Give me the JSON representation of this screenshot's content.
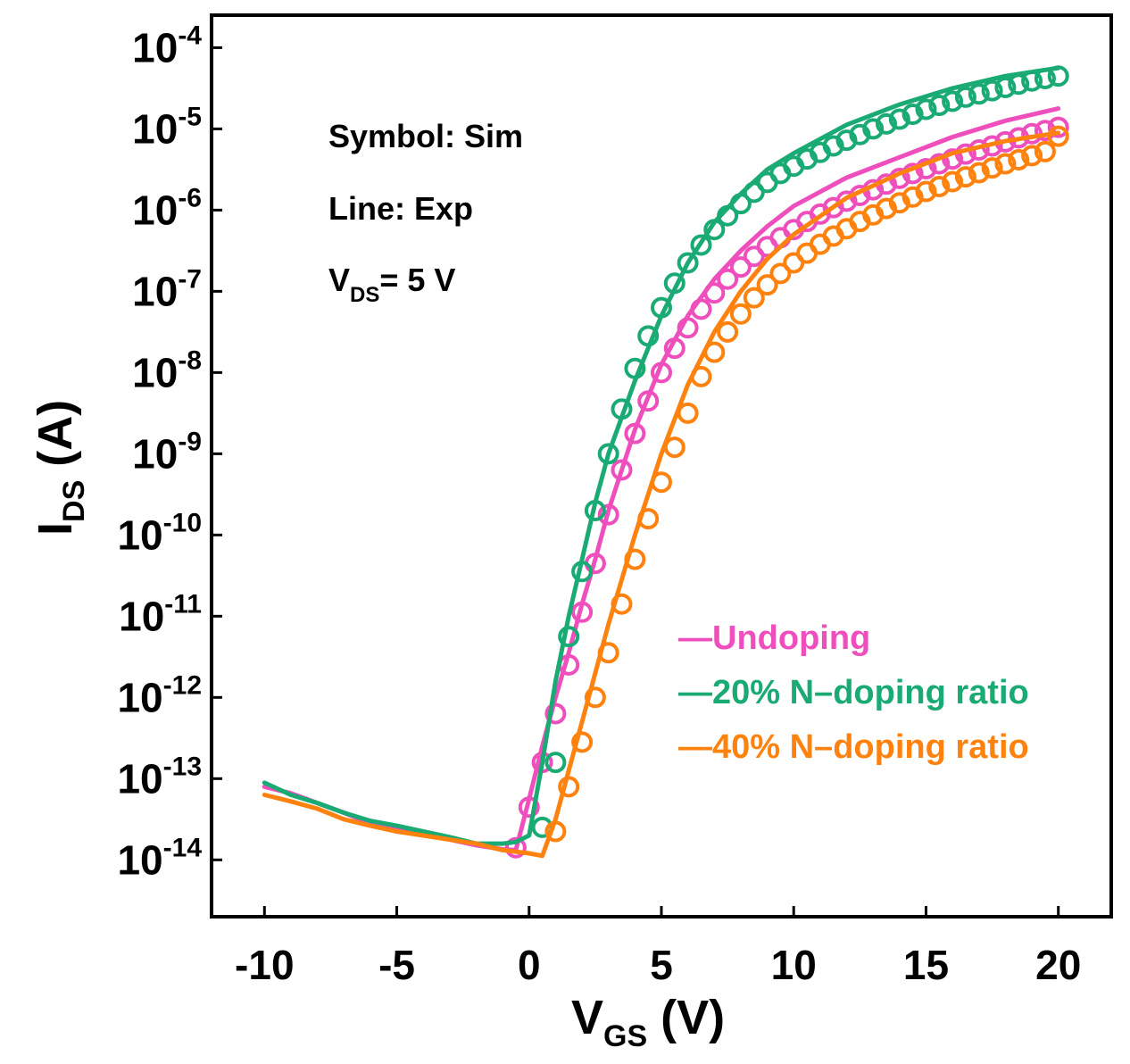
{
  "chart_data": {
    "type": "line",
    "title": "",
    "xlabel": {
      "main": "V",
      "sub": "GS",
      "unit": " (V)"
    },
    "ylabel": {
      "main": "I",
      "sub": "DS",
      "unit": " (A)"
    },
    "xlim": [
      -12,
      22
    ],
    "ylim_log10": [
      -14.7,
      -3.6
    ],
    "yscale": "log",
    "x_ticks": [
      {
        "value": -10,
        "label": "-10"
      },
      {
        "value": -5,
        "label": "-5"
      },
      {
        "value": 0,
        "label": "0"
      },
      {
        "value": 5,
        "label": "5"
      },
      {
        "value": 10,
        "label": "10"
      },
      {
        "value": 15,
        "label": "15"
      },
      {
        "value": 20,
        "label": "20"
      }
    ],
    "y_ticks": [
      {
        "exp": -4,
        "base": "10",
        "sup": "-4"
      },
      {
        "exp": -5,
        "base": "10",
        "sup": "-5"
      },
      {
        "exp": -6,
        "base": "10",
        "sup": "-6"
      },
      {
        "exp": -7,
        "base": "10",
        "sup": "-7"
      },
      {
        "exp": -8,
        "base": "10",
        "sup": "-8"
      },
      {
        "exp": -9,
        "base": "10",
        "sup": "-9"
      },
      {
        "exp": -10,
        "base": "10",
        "sup": "-10"
      },
      {
        "exp": -11,
        "base": "10",
        "sup": "-11"
      },
      {
        "exp": -12,
        "base": "10",
        "sup": "-12"
      },
      {
        "exp": -13,
        "base": "10",
        "sup": "-13"
      },
      {
        "exp": -14,
        "base": "10",
        "sup": "-14"
      }
    ],
    "annotations": [
      {
        "text": "Symbol: Sim"
      },
      {
        "text": "Line: Exp"
      },
      {
        "main": "V",
        "sub": "DS",
        "rest": "= 5 V"
      }
    ],
    "legend_position": "bottom-right",
    "series": [
      {
        "name": "Undoping",
        "legend_label": "—Undoping",
        "color": "#ee4fbd",
        "exp_x": [
          -10,
          -9,
          -8,
          -7,
          -6,
          -5,
          -4,
          -3,
          -2,
          -1,
          -0.5,
          0,
          0.5,
          1,
          1.5,
          2,
          2.5,
          3,
          4,
          5,
          6,
          7,
          8,
          9,
          10,
          12,
          14,
          16,
          18,
          20
        ],
        "exp_log10": [
          -13.1,
          -13.18,
          -13.3,
          -13.42,
          -13.55,
          -13.6,
          -13.68,
          -13.75,
          -13.82,
          -13.87,
          -13.88,
          -13.25,
          -12.6,
          -12.0,
          -11.45,
          -10.85,
          -10.3,
          -9.7,
          -8.7,
          -7.9,
          -7.3,
          -6.85,
          -6.5,
          -6.2,
          -5.95,
          -5.6,
          -5.35,
          -5.1,
          -4.9,
          -4.75
        ],
        "sim_x": [
          -0.5,
          0,
          0.5,
          1,
          1.5,
          2,
          2.5,
          3,
          3.5,
          4,
          4.5,
          5,
          5.5,
          6,
          6.5,
          7,
          7.5,
          8,
          8.5,
          9,
          9.5,
          10,
          10.5,
          11,
          11.5,
          12,
          12.5,
          13,
          13.5,
          14,
          14.5,
          15,
          15.5,
          16,
          16.5,
          17,
          17.5,
          18,
          18.5,
          19,
          19.5,
          20
        ],
        "sim_log10": [
          -13.85,
          -13.35,
          -12.8,
          -12.2,
          -11.6,
          -10.95,
          -10.35,
          -9.75,
          -9.2,
          -8.75,
          -8.35,
          -8.0,
          -7.7,
          -7.45,
          -7.22,
          -7.02,
          -6.85,
          -6.7,
          -6.57,
          -6.45,
          -6.34,
          -6.24,
          -6.14,
          -6.05,
          -5.97,
          -5.89,
          -5.82,
          -5.75,
          -5.68,
          -5.61,
          -5.55,
          -5.49,
          -5.43,
          -5.37,
          -5.31,
          -5.26,
          -5.21,
          -5.16,
          -5.11,
          -5.06,
          -5.02,
          -4.98
        ]
      },
      {
        "name": "20% N-doping ratio",
        "legend_label": "—20% N–doping ratio",
        "color": "#1aaa73",
        "exp_x": [
          -10,
          -9,
          -8,
          -7,
          -6,
          -5,
          -4,
          -3,
          -2,
          -1,
          -0.5,
          0,
          0.5,
          1,
          1.5,
          2,
          2.5,
          3,
          4,
          5,
          6,
          7,
          8,
          9,
          10,
          12,
          14,
          16,
          18,
          20
        ],
        "exp_log10": [
          -13.05,
          -13.2,
          -13.3,
          -13.42,
          -13.52,
          -13.58,
          -13.65,
          -13.72,
          -13.8,
          -13.8,
          -13.78,
          -13.7,
          -12.8,
          -11.8,
          -11.0,
          -10.3,
          -9.6,
          -9.0,
          -8.1,
          -7.3,
          -6.65,
          -6.15,
          -5.8,
          -5.5,
          -5.3,
          -4.95,
          -4.7,
          -4.5,
          -4.35,
          -4.25
        ],
        "sim_x": [
          0.5,
          1,
          1.5,
          2,
          2.5,
          3,
          3.5,
          4,
          4.5,
          5,
          5.5,
          6,
          6.5,
          7,
          7.5,
          8,
          8.5,
          9,
          9.5,
          10,
          10.5,
          11,
          11.5,
          12,
          12.5,
          13,
          13.5,
          14,
          14.5,
          15,
          15.5,
          16,
          16.5,
          17,
          17.5,
          18,
          18.5,
          19,
          19.5,
          20
        ],
        "sim_log10": [
          -13.6,
          -12.8,
          -11.25,
          -10.45,
          -9.7,
          -9.0,
          -8.45,
          -7.95,
          -7.55,
          -7.2,
          -6.9,
          -6.65,
          -6.43,
          -6.24,
          -6.07,
          -5.92,
          -5.78,
          -5.66,
          -5.55,
          -5.46,
          -5.37,
          -5.29,
          -5.21,
          -5.14,
          -5.07,
          -5.0,
          -4.94,
          -4.88,
          -4.82,
          -4.76,
          -4.71,
          -4.66,
          -4.61,
          -4.57,
          -4.53,
          -4.49,
          -4.45,
          -4.41,
          -4.38,
          -4.35
        ]
      },
      {
        "name": "40% N-doping ratio",
        "legend_label": "—40% N–doping ratio",
        "color": "#ff820e",
        "exp_x": [
          -10,
          -9,
          -8,
          -7,
          -6,
          -5,
          -4,
          -3,
          -2,
          -1,
          0,
          0.5,
          1,
          1.5,
          2,
          2.5,
          3,
          3.5,
          4,
          5,
          6,
          7,
          8,
          9,
          10,
          12,
          14,
          16,
          18,
          20
        ],
        "exp_log10": [
          -13.2,
          -13.28,
          -13.37,
          -13.5,
          -13.58,
          -13.65,
          -13.7,
          -13.75,
          -13.8,
          -13.88,
          -13.92,
          -13.95,
          -13.5,
          -12.9,
          -12.3,
          -11.7,
          -11.1,
          -10.55,
          -10.0,
          -9.0,
          -8.15,
          -7.5,
          -7.0,
          -6.6,
          -6.3,
          -5.85,
          -5.55,
          -5.3,
          -5.15,
          -5.05
        ],
        "sim_x": [
          1,
          1.5,
          2,
          2.5,
          3,
          3.5,
          4,
          4.5,
          5,
          5.5,
          6,
          6.5,
          7,
          7.5,
          8,
          8.5,
          9,
          9.5,
          10,
          10.5,
          11,
          11.5,
          12,
          12.5,
          13,
          13.5,
          14,
          14.5,
          15,
          15.5,
          16,
          16.5,
          17,
          17.5,
          18,
          18.5,
          19,
          19.5,
          20
        ],
        "sim_log10": [
          -13.65,
          -13.1,
          -12.55,
          -12.0,
          -11.45,
          -10.85,
          -10.3,
          -9.8,
          -9.35,
          -8.92,
          -8.5,
          -8.05,
          -7.75,
          -7.5,
          -7.28,
          -7.08,
          -6.92,
          -6.78,
          -6.65,
          -6.53,
          -6.42,
          -6.32,
          -6.23,
          -6.14,
          -6.06,
          -5.98,
          -5.91,
          -5.84,
          -5.77,
          -5.71,
          -5.65,
          -5.59,
          -5.54,
          -5.48,
          -5.43,
          -5.38,
          -5.33,
          -5.28,
          -5.09
        ]
      }
    ]
  }
}
